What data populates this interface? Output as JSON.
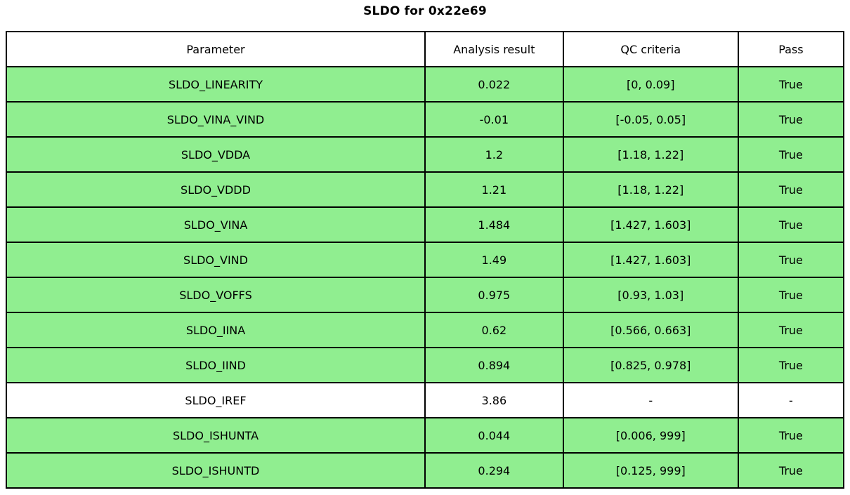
{
  "title": "SLDO for 0x22e69",
  "colors": {
    "pass_row_bg": "#90ee90",
    "neutral_row_bg": "#ffffff",
    "header_bg": "#ffffff",
    "border": "#000000",
    "text": "#000000"
  },
  "chart_data": {
    "type": "table",
    "title": "SLDO for 0x22e69",
    "columns": [
      "Parameter",
      "Analysis result",
      "QC criteria",
      "Pass"
    ],
    "rows": [
      {
        "parameter": "SLDO_LINEARITY",
        "analysis_result": "0.022",
        "qc_criteria": "[0, 0.09]",
        "pass": "True",
        "highlighted": true
      },
      {
        "parameter": "SLDO_VINA_VIND",
        "analysis_result": "-0.01",
        "qc_criteria": "[-0.05, 0.05]",
        "pass": "True",
        "highlighted": true
      },
      {
        "parameter": "SLDO_VDDA",
        "analysis_result": "1.2",
        "qc_criteria": "[1.18, 1.22]",
        "pass": "True",
        "highlighted": true
      },
      {
        "parameter": "SLDO_VDDD",
        "analysis_result": "1.21",
        "qc_criteria": "[1.18, 1.22]",
        "pass": "True",
        "highlighted": true
      },
      {
        "parameter": "SLDO_VINA",
        "analysis_result": "1.484",
        "qc_criteria": "[1.427, 1.603]",
        "pass": "True",
        "highlighted": true
      },
      {
        "parameter": "SLDO_VIND",
        "analysis_result": "1.49",
        "qc_criteria": "[1.427, 1.603]",
        "pass": "True",
        "highlighted": true
      },
      {
        "parameter": "SLDO_VOFFS",
        "analysis_result": "0.975",
        "qc_criteria": "[0.93, 1.03]",
        "pass": "True",
        "highlighted": true
      },
      {
        "parameter": "SLDO_IINA",
        "analysis_result": "0.62",
        "qc_criteria": "[0.566, 0.663]",
        "pass": "True",
        "highlighted": true
      },
      {
        "parameter": "SLDO_IIND",
        "analysis_result": "0.894",
        "qc_criteria": "[0.825, 0.978]",
        "pass": "True",
        "highlighted": true
      },
      {
        "parameter": "SLDO_IREF",
        "analysis_result": "3.86",
        "qc_criteria": "-",
        "pass": "-",
        "highlighted": false
      },
      {
        "parameter": "SLDO_ISHUNTA",
        "analysis_result": "0.044",
        "qc_criteria": "[0.006, 999]",
        "pass": "True",
        "highlighted": true
      },
      {
        "parameter": "SLDO_ISHUNTD",
        "analysis_result": "0.294",
        "qc_criteria": "[0.125, 999]",
        "pass": "True",
        "highlighted": true
      }
    ]
  }
}
